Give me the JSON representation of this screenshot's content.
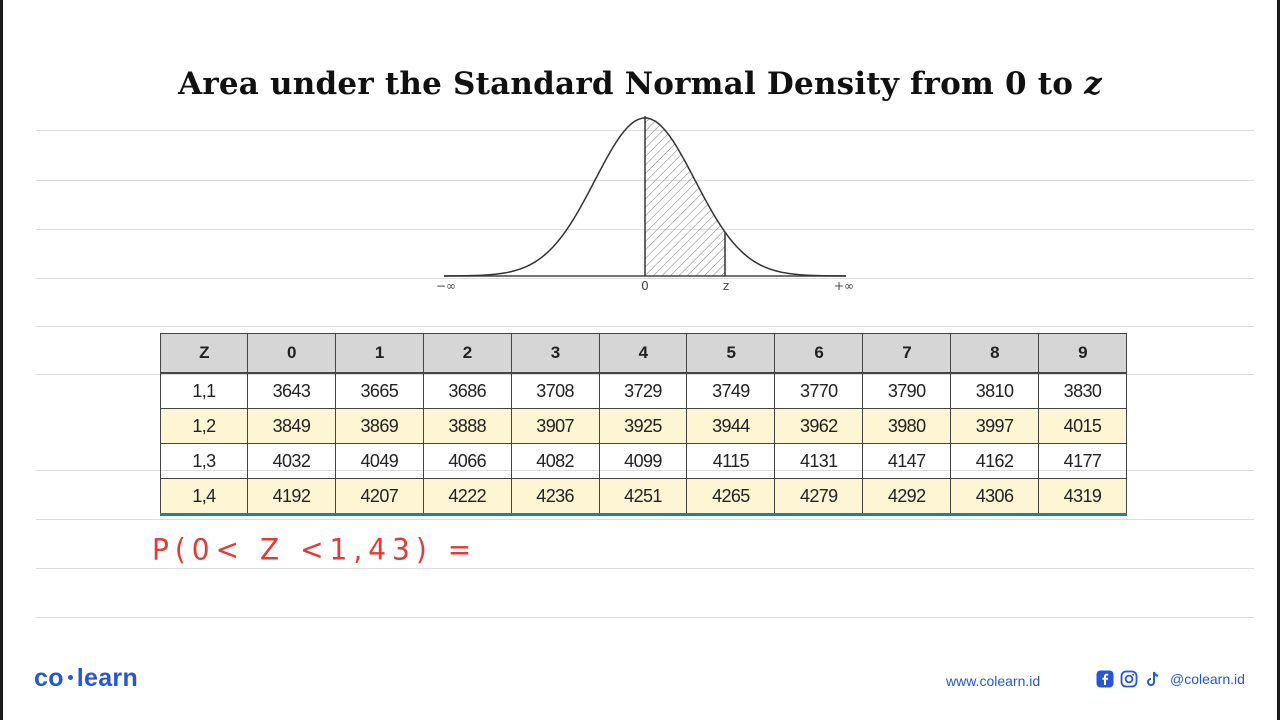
{
  "title": {
    "text": "Area under the Standard Normal Density from 0 to ",
    "variable": "z"
  },
  "curve": {
    "labels": {
      "neg_inf": "−∞",
      "zero": "0",
      "z": "z",
      "pos_inf": "+∞"
    }
  },
  "table": {
    "headers": [
      "Z",
      "0",
      "1",
      "2",
      "3",
      "4",
      "5",
      "6",
      "7",
      "8",
      "9"
    ],
    "rows": [
      [
        "1,1",
        "3643",
        "3665",
        "3686",
        "3708",
        "3729",
        "3749",
        "3770",
        "3790",
        "3810",
        "3830"
      ],
      [
        "1,2",
        "3849",
        "3869",
        "3888",
        "3907",
        "3925",
        "3944",
        "3962",
        "3980",
        "3997",
        "4015"
      ],
      [
        "1,3",
        "4032",
        "4049",
        "4066",
        "4082",
        "4099",
        "4115",
        "4131",
        "4147",
        "4162",
        "4177"
      ],
      [
        "1,4",
        "4192",
        "4207",
        "4222",
        "4236",
        "4251",
        "4265",
        "4279",
        "4292",
        "4306",
        "4319"
      ]
    ]
  },
  "handwriting": "P(0< Z <1,43) =",
  "footer": {
    "logo_left": "co",
    "logo_right": "learn",
    "website": "www.colearn.id",
    "handle": "@colearn.id"
  },
  "colors": {
    "brand_blue": "#2456d6",
    "handwriting_red": "#e53935",
    "header_gray": "#d6d6d6",
    "row_highlight": "#fdf5d3"
  },
  "icons": [
    "facebook-icon",
    "instagram-icon",
    "tiktok-icon"
  ]
}
